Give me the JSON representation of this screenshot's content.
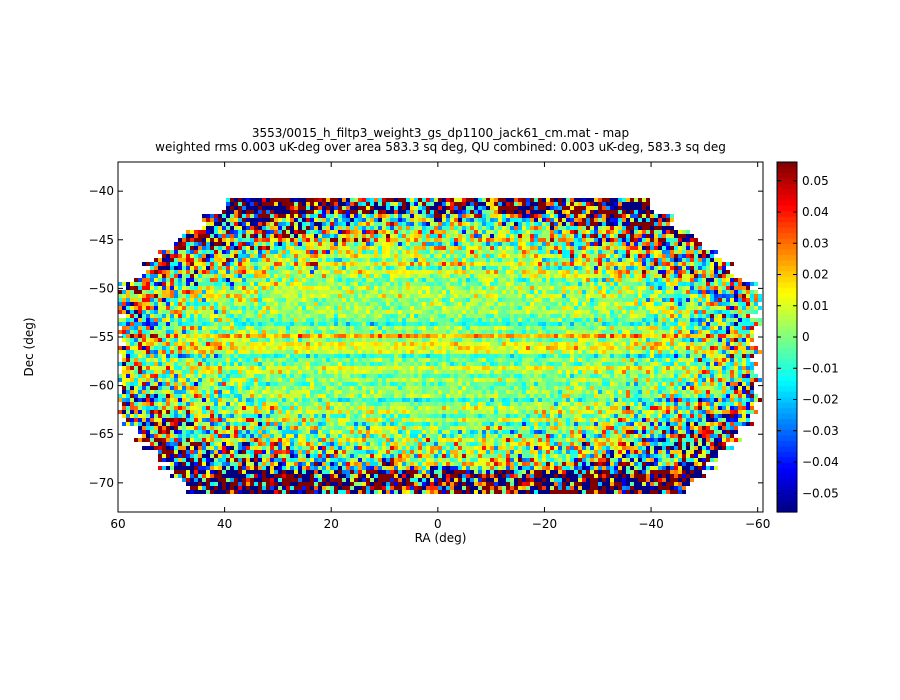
{
  "chart_data": {
    "type": "heatmap",
    "title": "3553/0015_h_filtp3_weight3_gs_dp1100_jack61_cm.mat - map",
    "subtitle": "weighted rms 0.003 uK-deg over area 583.3 sq deg, QU combined: 0.003 uK-deg, 583.3 sq deg",
    "xlabel": "RA (deg)",
    "ylabel": "Dec (deg)",
    "xlim": [
      60,
      -61
    ],
    "ylim": [
      -73,
      -37
    ],
    "x_ticks": [
      60,
      40,
      20,
      0,
      -20,
      -40,
      -60
    ],
    "x_tick_labels": [
      "60",
      "40",
      "20",
      "0",
      "−20",
      "−40",
      "−60"
    ],
    "y_ticks": [
      -40,
      -45,
      -50,
      -55,
      -60,
      -65,
      -70
    ],
    "y_tick_labels": [
      "−40",
      "−45",
      "−50",
      "−55",
      "−60",
      "−65",
      "−70"
    ],
    "colorbar": {
      "colormap": "jet",
      "clim": [
        -0.056,
        0.056
      ],
      "ticks": [
        0.05,
        0.04,
        0.03,
        0.02,
        0.01,
        0,
        -0.01,
        -0.02,
        -0.03,
        -0.04,
        -0.05
      ],
      "tick_labels": [
        "0.05",
        "0.04",
        "0.03",
        "0.02",
        "0.01",
        "0",
        "−0.01",
        "−0.02",
        "−0.03",
        "−0.04",
        "−0.05"
      ]
    },
    "field": {
      "dec_range": [
        -71,
        -40.5
      ],
      "ra_halfwidth_top": 38,
      "ra_halfwidth_mid": 60,
      "ra_halfwidth_bottom": 47,
      "mid_dec_band": [
        -63,
        -50
      ],
      "center_rms_fraction": 0.2,
      "edge_rms_fraction": 1.4
    }
  }
}
